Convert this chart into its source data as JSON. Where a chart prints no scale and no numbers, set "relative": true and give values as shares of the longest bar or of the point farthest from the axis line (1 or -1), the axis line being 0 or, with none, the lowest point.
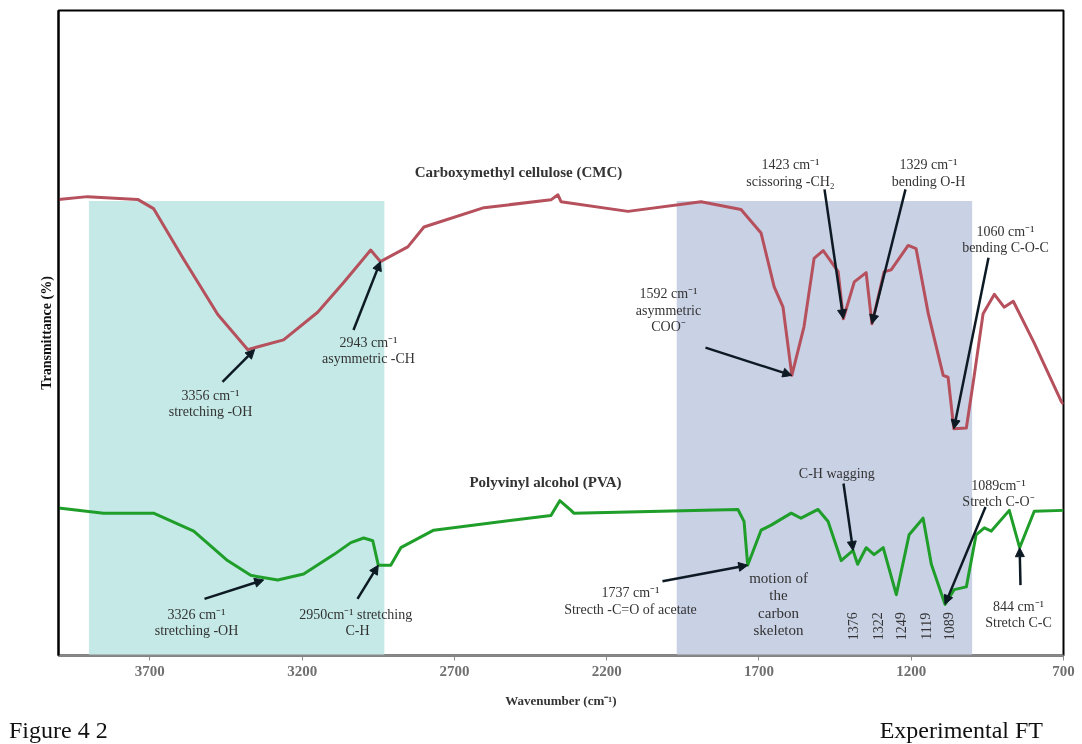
{
  "chart_data": {
    "type": "line",
    "xlabel": "Wavenumber (cm⁻¹)",
    "ylabel": "Transmittance (%)",
    "xlim": [
      4000,
      700
    ],
    "xticks": [
      3700,
      3200,
      2700,
      2200,
      1700,
      1200,
      700
    ],
    "relative": true,
    "legend": false,
    "grid": false,
    "series": [
      {
        "name": "Carboxymethyl cellulose (CMC)",
        "color": "#b5505c",
        "x": [
          4000,
          3905,
          3740,
          3688,
          3589,
          3477,
          3379,
          3261,
          3149,
          3063,
          2975,
          2943,
          2853,
          2800,
          2603,
          2383,
          2360,
          2350,
          2130,
          1890,
          1759,
          1693,
          1650,
          1621,
          1592,
          1552,
          1519,
          1489,
          1440,
          1423,
          1387,
          1348,
          1329,
          1289,
          1266,
          1210,
          1184,
          1144,
          1095,
          1079,
          1060,
          1019,
          993,
          964,
          927,
          895,
          865,
          796,
          707,
          700
        ],
        "values": [
          0.99,
          0.996,
          0.99,
          0.97,
          0.86,
          0.74,
          0.664,
          0.685,
          0.745,
          0.81,
          0.88,
          0.855,
          0.887,
          0.93,
          0.972,
          0.989,
          1.0,
          0.985,
          0.964,
          0.985,
          0.968,
          0.917,
          0.8,
          0.756,
          0.608,
          0.714,
          0.862,
          0.879,
          0.833,
          0.731,
          0.811,
          0.831,
          0.72,
          0.833,
          0.837,
          0.89,
          0.883,
          0.742,
          0.608,
          0.604,
          0.492,
          0.494,
          0.608,
          0.742,
          0.784,
          0.756,
          0.769,
          0.678,
          0.551,
          0.545
        ]
      },
      {
        "name": "Polyvinyl alcohol (PVA)",
        "color": "#1f9e2a",
        "x": [
          4000,
          3852,
          3688,
          3556,
          3445,
          3369,
          3280,
          3195,
          3096,
          3040,
          2998,
          2968,
          2950,
          2909,
          2876,
          2768,
          2383,
          2354,
          2317,
          2308,
          1769,
          1749,
          1737,
          1693,
          1660,
          1594,
          1562,
          1506,
          1473,
          1430,
          1391,
          1376,
          1348,
          1322,
          1292,
          1249,
          1207,
          1161,
          1134,
          1089,
          1059,
          1019,
          987,
          960,
          937,
          878,
          844,
          796,
          700
        ],
        "values": [
          0.32,
          0.309,
          0.309,
          0.27,
          0.206,
          0.174,
          0.164,
          0.177,
          0.219,
          0.245,
          0.255,
          0.249,
          0.196,
          0.196,
          0.234,
          0.272,
          0.304,
          0.336,
          0.315,
          0.309,
          0.317,
          0.291,
          0.196,
          0.272,
          0.283,
          0.309,
          0.298,
          0.317,
          0.291,
          0.206,
          0.228,
          0.198,
          0.234,
          0.219,
          0.234,
          0.132,
          0.262,
          0.298,
          0.198,
          0.111,
          0.143,
          0.149,
          0.262,
          0.277,
          0.27,
          0.315,
          0.234,
          0.313,
          0.315
        ]
      }
    ],
    "bands": [
      {
        "axis": "x",
        "from": 3900,
        "to": 2930,
        "color": "#c4e9e6"
      },
      {
        "axis": "x",
        "from": 1970,
        "to": 1000,
        "color": "#c9d1e5"
      }
    ],
    "annotations": [
      {
        "text": "3356 cm⁻¹\nstretching -OH",
        "x": 3356,
        "y": 0.664
      },
      {
        "text": "2943 cm⁻¹\nasymmetric -CH",
        "x": 2943,
        "y": 0.855
      },
      {
        "text": "1592 cm⁻¹\nasymmetric\nCOO⁻",
        "x": 1592,
        "y": 0.608
      },
      {
        "text": "1423 cm⁻¹\nscissoring -CH₂",
        "x": 1423,
        "y": 0.731
      },
      {
        "text": "1329 cm⁻¹\nbending O-H",
        "x": 1329,
        "y": 0.72
      },
      {
        "text": "1060 cm⁻¹\nbending C-O-C",
        "x": 1060,
        "y": 0.492
      },
      {
        "text": "3326 cm⁻¹\nstretching -OH",
        "x": 3326,
        "y": 0.164
      },
      {
        "text": "2950cm⁻¹  stretching\nC-H",
        "x": 2950,
        "y": 0.196
      },
      {
        "text": "1737 cm⁻¹\nStrecth -C=O of acetate",
        "x": 1737,
        "y": 0.196
      },
      {
        "text": "C-H  wagging",
        "x": 1391,
        "y": 0.228
      },
      {
        "text": "1089cm⁻¹\nStretch C-O⁻",
        "x": 1089,
        "y": 0.111
      },
      {
        "text": "844 cm⁻¹\nStretch C-C",
        "x": 844,
        "y": 0.234
      },
      "motion of\nthe\ncarbon\nskeleton",
      "1376",
      "1322",
      "1249",
      "1119",
      "1089",
      "Figure 4 2",
      "Experimental FT"
    ]
  }
}
